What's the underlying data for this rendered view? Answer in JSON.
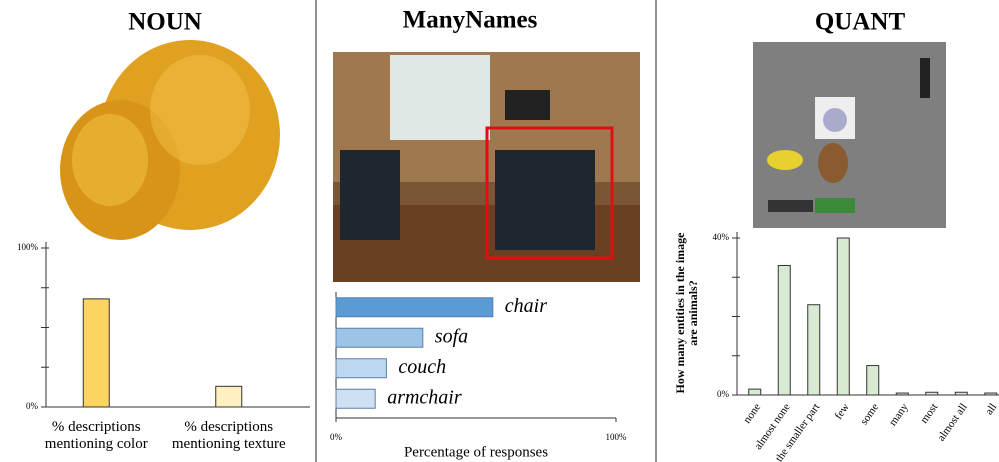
{
  "chart_data": [
    {
      "type": "bar",
      "title": "NOUN",
      "categories": [
        "% descriptions mentioning color",
        "% descriptions mentioning texture"
      ],
      "values": [
        68,
        13
      ],
      "colors": [
        "#fcd462",
        "#fef0c0"
      ],
      "ylim": [
        0,
        100
      ],
      "yticks": [
        {
          "value": 0,
          "label": "0%"
        },
        {
          "value": 100,
          "label": "100%"
        }
      ],
      "minor_yticks": [
        25,
        50,
        75
      ]
    },
    {
      "type": "hbar",
      "title": "ManyNames",
      "categories": [
        "chair",
        "sofa",
        "couch",
        "armchair"
      ],
      "values": [
        56,
        31,
        18,
        14
      ],
      "colors": [
        "#5b9bd5",
        "#9dc3e6",
        "#bdd7ee",
        "#cfe0f3"
      ],
      "xlim": [
        0,
        100
      ],
      "xticks": [
        {
          "value": 0,
          "label": "0%"
        },
        {
          "value": 100,
          "label": "100%"
        }
      ],
      "xlabel": "Percentage of responses"
    },
    {
      "type": "bar",
      "title": "QUANT",
      "ylabel": "How many entities in the image are animals?",
      "categories": [
        "none",
        "almost none",
        "the smaller part",
        "few",
        "some",
        "many",
        "most",
        "almost all",
        "all"
      ],
      "values": [
        1.5,
        33,
        23,
        40,
        7.5,
        0.5,
        0.7,
        0.7,
        0.5
      ],
      "color": "#d9ead3",
      "ylim": [
        0,
        40
      ],
      "yticks": [
        {
          "value": 0,
          "label": "0%"
        },
        {
          "value": 40,
          "label": "40%"
        }
      ],
      "minor_yticks": [
        10,
        20,
        30
      ]
    }
  ]
}
